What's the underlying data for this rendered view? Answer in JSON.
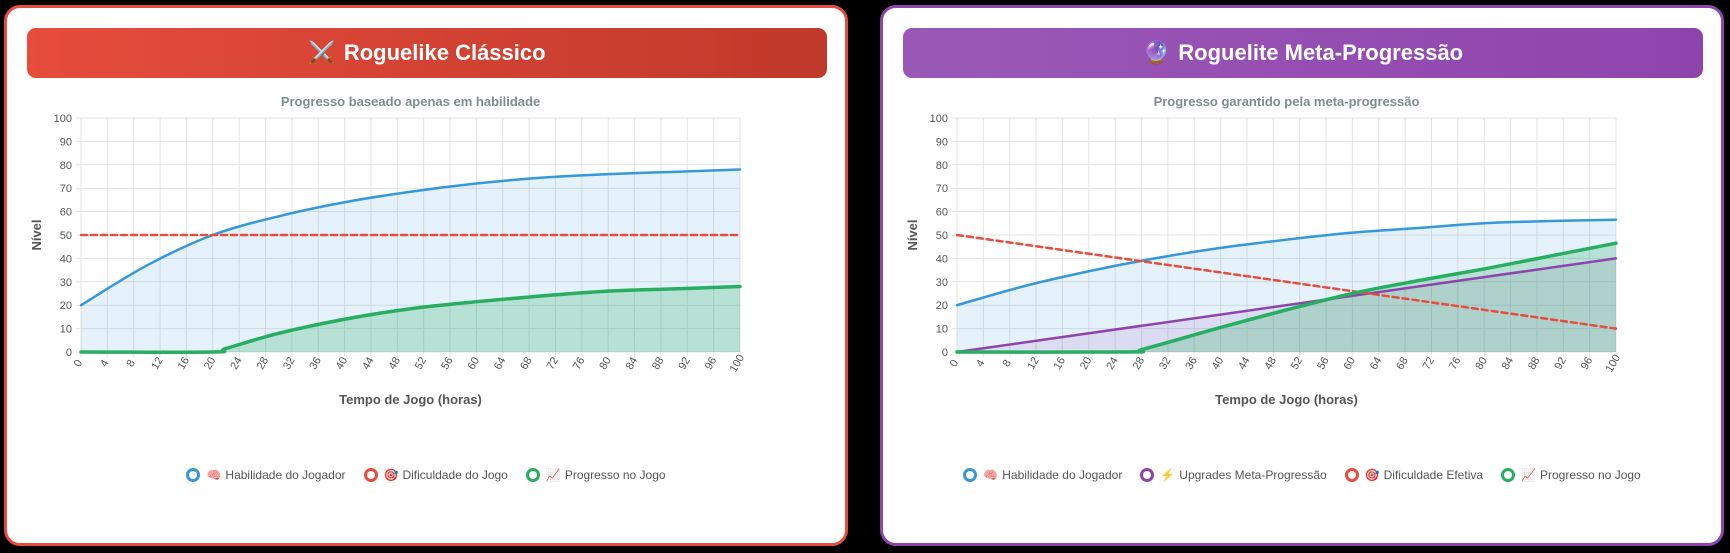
{
  "panels": [
    {
      "header": {
        "icon": "⚔️",
        "title": "Roguelike Clássico"
      },
      "chart_data": {
        "type": "area",
        "title": "Progresso baseado apenas em habilidade",
        "xlabel": "Tempo de Jogo (horas)",
        "ylabel": "Nível",
        "xlim": [
          0,
          100
        ],
        "ylim": [
          0,
          100
        ],
        "xticks": [
          0,
          4,
          8,
          12,
          16,
          20,
          24,
          28,
          32,
          36,
          40,
          44,
          48,
          52,
          56,
          60,
          64,
          68,
          72,
          76,
          80,
          84,
          88,
          92,
          96,
          100
        ],
        "yticks": [
          0,
          10,
          20,
          30,
          40,
          50,
          60,
          70,
          80,
          90,
          100
        ],
        "grid": true,
        "legend_position": "bottom",
        "series": [
          {
            "name": "Habilidade do Jogador",
            "emoji": "🧠",
            "color": "#3498db",
            "fill": "rgba(52,152,219,0.12)",
            "dash": false,
            "width": 2.5,
            "x": [
              0,
              10,
              20,
              30,
              40,
              50,
              60,
              70,
              80,
              90,
              100
            ],
            "y": [
              20,
              37,
              50,
              58,
              64,
              68.5,
              72,
              74.5,
              76,
              77,
              78
            ]
          },
          {
            "name": "Dificuldade do Jogo",
            "emoji": "🎯",
            "color": "#e74c3c",
            "fill": "none",
            "dash": true,
            "width": 2.5,
            "x": [
              0,
              100
            ],
            "y": [
              50,
              50
            ]
          },
          {
            "name": "Progresso no Jogo",
            "emoji": "📈",
            "color": "#27ae60",
            "fill": "rgba(39,174,96,0.25)",
            "dash": false,
            "width": 3.5,
            "x": [
              0,
              20,
              22,
              30,
              40,
              50,
              60,
              70,
              80,
              90,
              100
            ],
            "y": [
              0,
              0,
              1.5,
              8,
              14,
              18.5,
              21.5,
              24,
              26,
              27,
              28
            ]
          }
        ]
      }
    },
    {
      "header": {
        "icon": "🔮",
        "title": "Roguelite Meta-Progressão"
      },
      "chart_data": {
        "type": "area",
        "title": "Progresso garantido pela meta-progressão",
        "xlabel": "Tempo de Jogo (horas)",
        "ylabel": "Nível",
        "xlim": [
          0,
          100
        ],
        "ylim": [
          0,
          100
        ],
        "xticks": [
          0,
          4,
          8,
          12,
          16,
          20,
          24,
          28,
          32,
          36,
          40,
          44,
          48,
          52,
          56,
          60,
          64,
          68,
          72,
          76,
          80,
          84,
          88,
          92,
          96,
          100
        ],
        "yticks": [
          0,
          10,
          20,
          30,
          40,
          50,
          60,
          70,
          80,
          90,
          100
        ],
        "grid": true,
        "legend_position": "bottom",
        "series": [
          {
            "name": "Habilidade do Jogador",
            "emoji": "🧠",
            "color": "#3498db",
            "fill": "rgba(52,152,219,0.12)",
            "dash": false,
            "width": 2.5,
            "x": [
              0,
              10,
              20,
              30,
              40,
              50,
              60,
              70,
              80,
              90,
              100
            ],
            "y": [
              20,
              28,
              34.5,
              40,
              44.5,
              48,
              51,
              53,
              55,
              56,
              56.5
            ]
          },
          {
            "name": "Upgrades Meta-Progressão",
            "emoji": "⚡",
            "color": "#8e44ad",
            "fill": "rgba(142,68,173,0.12)",
            "dash": false,
            "width": 2.5,
            "x": [
              0,
              100
            ],
            "y": [
              0,
              40
            ]
          },
          {
            "name": "Dificuldade Efetiva",
            "emoji": "🎯",
            "color": "#e74c3c",
            "fill": "none",
            "dash": true,
            "width": 2.5,
            "x": [
              0,
              100
            ],
            "y": [
              50,
              10
            ]
          },
          {
            "name": "Progresso no Jogo",
            "emoji": "📈",
            "color": "#27ae60",
            "fill": "rgba(39,174,96,0.25)",
            "dash": false,
            "width": 3.5,
            "x": [
              0,
              26,
              28,
              35,
              40,
              50,
              60,
              70,
              80,
              90,
              100
            ],
            "y": [
              0,
              0,
              1,
              6.5,
              10.5,
              18,
              25,
              30.5,
              35.5,
              41,
              46.5
            ]
          }
        ]
      }
    }
  ]
}
